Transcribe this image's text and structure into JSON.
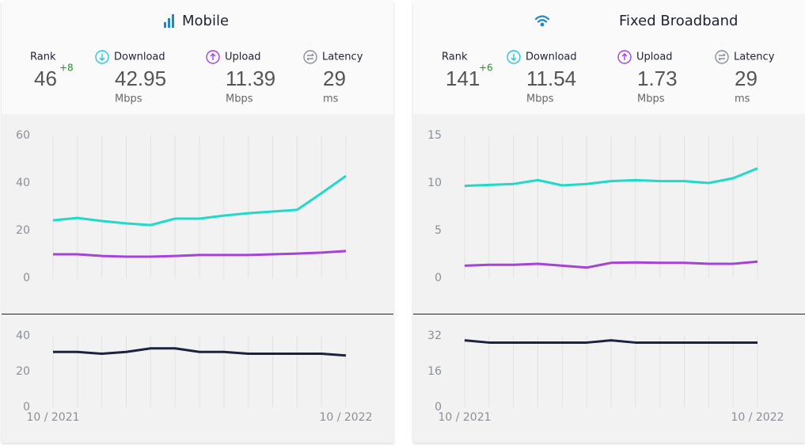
{
  "panels": [
    {
      "title": "Mobile",
      "rank": {
        "label": "Rank",
        "value": 46,
        "change": "+8"
      },
      "stats": [
        {
          "label": "Download",
          "value": 42.95,
          "unit": "Mbps"
        },
        {
          "label": "Upload",
          "value": 11.39,
          "unit": "Mbps"
        },
        {
          "label": "Latency",
          "value": 29,
          "unit": "ms"
        }
      ]
    },
    {
      "title": "Fixed Broadband",
      "rank": {
        "label": "Rank",
        "value": 141,
        "change": "+6"
      },
      "stats": [
        {
          "label": "Download",
          "value": 11.54,
          "unit": "Mbps"
        },
        {
          "label": "Upload",
          "value": 1.73,
          "unit": "Mbps"
        },
        {
          "label": "Latency",
          "value": 29,
          "unit": "ms"
        }
      ]
    }
  ],
  "chart_data": [
    {
      "type": "line",
      "ylim": [
        0,
        60
      ],
      "yticks": [
        0,
        20,
        40,
        60
      ],
      "series": [
        {
          "name": "Download",
          "color": "#22d9c9",
          "values": [
            24.3,
            25.3,
            24,
            23,
            22.3,
            25,
            25,
            26.3,
            27.3,
            28,
            28.7,
            35.7,
            42.95
          ]
        },
        {
          "name": "Upload",
          "color": "#a443d6",
          "values": [
            10,
            10,
            9.3,
            9,
            9,
            9.3,
            9.7,
            9.7,
            9.7,
            10,
            10.3,
            10.7,
            11.39
          ]
        }
      ]
    },
    {
      "type": "line",
      "ylim": [
        0,
        40
      ],
      "yticks": [
        0,
        20,
        40
      ],
      "categories": [
        "10 / 2021",
        null,
        null,
        null,
        null,
        null,
        null,
        null,
        null,
        null,
        null,
        null,
        "10 / 2022"
      ],
      "series": [
        {
          "name": "Latency",
          "color": "#1c2340",
          "values": [
            31,
            31,
            30,
            31,
            33,
            33,
            31,
            31,
            30,
            30,
            30,
            30,
            29
          ]
        }
      ]
    },
    {
      "type": "line",
      "ylim": [
        0,
        15
      ],
      "yticks": [
        0,
        5,
        10,
        15
      ],
      "series": [
        {
          "name": "Download",
          "color": "#22d9c9",
          "values": [
            9.7,
            9.8,
            9.9,
            10.3,
            9.75,
            9.9,
            10.2,
            10.3,
            10.2,
            10.2,
            10,
            10.5,
            11.54
          ]
        },
        {
          "name": "Upload",
          "color": "#a443d6",
          "values": [
            1.3,
            1.4,
            1.4,
            1.5,
            1.3,
            1.1,
            1.6,
            1.65,
            1.6,
            1.6,
            1.5,
            1.5,
            1.73
          ]
        }
      ]
    },
    {
      "type": "line",
      "ylim": [
        0,
        32
      ],
      "yticks": [
        0,
        16,
        32
      ],
      "categories": [
        "10 / 2021",
        null,
        null,
        null,
        null,
        null,
        null,
        null,
        null,
        null,
        null,
        null,
        "10 / 2022"
      ],
      "series": [
        {
          "name": "Latency",
          "color": "#1c2340",
          "values": [
            30,
            29,
            29,
            29,
            29,
            29,
            30,
            29,
            29,
            29,
            29,
            29,
            29
          ]
        }
      ]
    }
  ]
}
